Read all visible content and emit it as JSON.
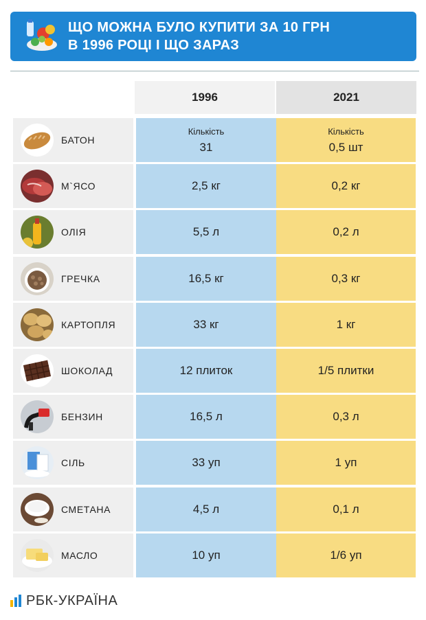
{
  "header": {
    "title_line1": "ЩО МОЖНА БУЛО КУПИТИ ЗА 10 ГРН",
    "title_line2": "В 1996 РОЦІ І ЩО ЗАРАЗ",
    "icon": "groceries-icon"
  },
  "columns": {
    "col1": "1996",
    "col2": "2021"
  },
  "colors": {
    "banner": "#1f86d3",
    "col1996": "#b7d8ef",
    "col2021": "#f8dc82",
    "product_bg": "#efefef"
  },
  "rows": [
    {
      "name": "БАТОН",
      "icon": "bread-icon",
      "sub1996": "Кількість",
      "v1996": "31",
      "sub2021": "Кількість",
      "v2021": "0,5 шт"
    },
    {
      "name": "М`ЯСО",
      "icon": "meat-icon",
      "v1996": "2,5 кг",
      "v2021": "0,2 кг"
    },
    {
      "name": "ОЛІЯ",
      "icon": "oil-icon",
      "v1996": "5,5 л",
      "v2021": "0,2 л"
    },
    {
      "name": "ГРЕЧКА",
      "icon": "buckwheat-icon",
      "v1996": "16,5 кг",
      "v2021": "0,3 кг"
    },
    {
      "name": "КАРТОПЛЯ",
      "icon": "potato-icon",
      "v1996": "33 кг",
      "v2021": "1 кг"
    },
    {
      "name": "ШОКОЛАД",
      "icon": "chocolate-icon",
      "v1996": "12 плиток",
      "v2021": "1/5 плитки"
    },
    {
      "name": "БЕНЗИН",
      "icon": "fuel-nozzle-icon",
      "v1996": "16,5 л",
      "v2021": "0,3 л"
    },
    {
      "name": "СІЛЬ",
      "icon": "salt-icon",
      "v1996": "33 уп",
      "v2021": "1 уп"
    },
    {
      "name": "СМЕТАНА",
      "icon": "sour-cream-icon",
      "v1996": "4,5 л",
      "v2021": "0,1 л"
    },
    {
      "name": "МАСЛО",
      "icon": "butter-icon",
      "v1996": "10 уп",
      "v2021": "1/6 уп"
    }
  ],
  "footer": {
    "logo_text": "РБК-УКРАЇНА",
    "logo_icon": "rbc-logo-icon"
  }
}
